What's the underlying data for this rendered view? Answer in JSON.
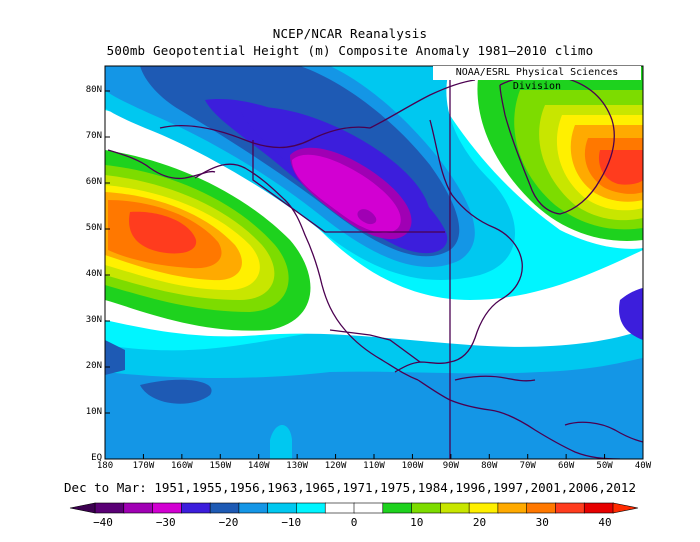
{
  "title_line1": "NCEP/NCAR Reanalysis",
  "title_line2": "500mb Geopotential Height (m) Composite Anomaly 1981–2010 climo",
  "credit": "NOAA/ESRL Physical Sciences Division",
  "date_range": "Dec to Mar: 1951,1955,1956,1963,1965,1971,1975,1984,1996,1997,2001,2006,2012",
  "lat_ticks": [
    "EQ",
    "10N",
    "20N",
    "30N",
    "40N",
    "50N",
    "60N",
    "70N",
    "80N"
  ],
  "lon_ticks": [
    "180",
    "170W",
    "160W",
    "150W",
    "140W",
    "130W",
    "120W",
    "110W",
    "100W",
    "90W",
    "80W",
    "70W",
    "60W",
    "50W",
    "40W"
  ],
  "colorbar": {
    "labels": [
      "−40",
      "−30",
      "−20",
      "−10",
      "0",
      "10",
      "20",
      "30",
      "40"
    ],
    "colors": [
      "#5a0075",
      "#a000b4",
      "#d200d2",
      "#3c1edc",
      "#1e5ab4",
      "#1496e6",
      "#00c8f0",
      "#00f5ff",
      "#ffffff",
      "#ffffff",
      "#1ed21e",
      "#7ddc00",
      "#c8e600",
      "#fff000",
      "#ffaa00",
      "#ff7800",
      "#ff3c1e",
      "#e60000"
    ]
  },
  "map": {
    "background_color": "#00f5ff",
    "features": [
      {
        "name": "broad-negative-band",
        "level": "-5 to -15 m",
        "color": "#00c8f0"
      },
      {
        "name": "trough-west-north-america",
        "level": "-30 to -35 m",
        "color": "#d200d2"
      },
      {
        "name": "ridge-north-pacific",
        "level": "+40 m",
        "color": "#e60000"
      },
      {
        "name": "ridge-greenland",
        "level": "+35 m",
        "color": "#ff3c1e"
      },
      {
        "name": "low-latitude-negative",
        "level": "-10 to -15 m",
        "color": "#1e5ab4"
      }
    ]
  }
}
